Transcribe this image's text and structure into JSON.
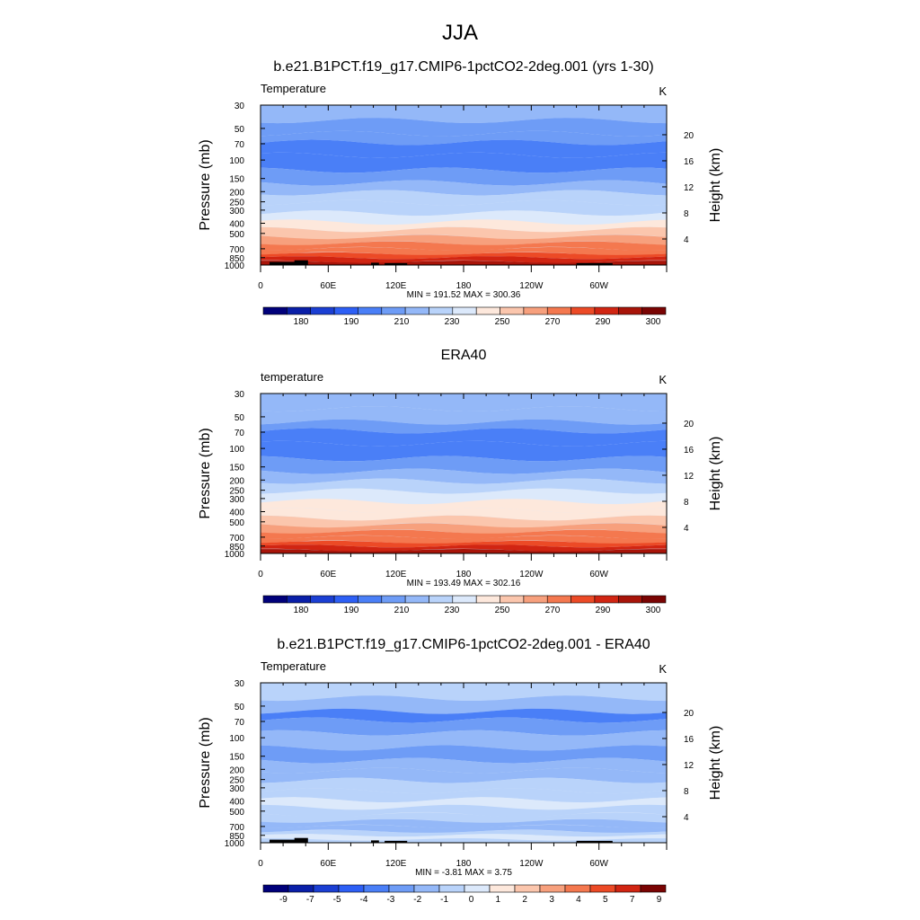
{
  "title": "JJA",
  "chart_data": [
    {
      "type": "heatmap",
      "title": "b.e21.B1PCT.f19_g17.CMIP6-1pctCO2-2deg.001 (yrs 1-30)",
      "variable_label": "Temperature",
      "units": "K",
      "ylabel": "Pressure (mb)",
      "y2label": "Height (km)",
      "yticks": [
        "30",
        "50",
        "70",
        "100",
        "150",
        "200",
        "250",
        "300",
        "400",
        "500",
        "700",
        "850",
        "1000"
      ],
      "y2ticks": [
        "20",
        "16",
        "12",
        "8",
        "4"
      ],
      "xticks": [
        "0",
        "60E",
        "120E",
        "180",
        "120W",
        "60W"
      ],
      "stats": "MIN = 191.52  MAX = 300.36",
      "colorbar_labels": [
        "180",
        "190",
        "210",
        "230",
        "250",
        "270",
        "290",
        "300"
      ],
      "colorbar_levels": [
        175,
        180,
        185,
        190,
        200,
        210,
        220,
        230,
        240,
        250,
        260,
        270,
        280,
        290,
        295,
        300
      ],
      "band_values": [
        215,
        207,
        205,
        199,
        197,
        205,
        212,
        220,
        229,
        236,
        246,
        256,
        263,
        272,
        278,
        286,
        292,
        296
      ],
      "palette": "temperature"
    },
    {
      "type": "heatmap",
      "title": "ERA40",
      "variable_label": "temperature",
      "units": "K",
      "ylabel": "Pressure (mb)",
      "y2label": "Height (km)",
      "yticks": [
        "30",
        "50",
        "70",
        "100",
        "150",
        "200",
        "250",
        "300",
        "400",
        "500",
        "700",
        "850",
        "1000"
      ],
      "y2ticks": [
        "20",
        "16",
        "12",
        "8",
        "4"
      ],
      "xticks": [
        "0",
        "60E",
        "120E",
        "180",
        "120W",
        "60W"
      ],
      "stats": "MIN = 193.49  MAX = 302.16",
      "colorbar_labels": [
        "180",
        "190",
        "210",
        "230",
        "250",
        "270",
        "290",
        "300"
      ],
      "colorbar_levels": [
        175,
        180,
        185,
        190,
        200,
        210,
        220,
        230,
        240,
        250,
        260,
        270,
        280,
        290,
        295,
        300
      ],
      "band_values": [
        215,
        210,
        205,
        199,
        198,
        205,
        213,
        222,
        232,
        240,
        248,
        257,
        265,
        272,
        279,
        287,
        293,
        298
      ],
      "palette": "temperature"
    },
    {
      "type": "heatmap",
      "title": "b.e21.B1PCT.f19_g17.CMIP6-1pctCO2-2deg.001 - ERA40",
      "variable_label": "Temperature",
      "units": "K",
      "ylabel": "Pressure (mb)",
      "y2label": "Height (km)",
      "yticks": [
        "30",
        "50",
        "70",
        "100",
        "150",
        "200",
        "250",
        "300",
        "400",
        "500",
        "700",
        "850",
        "1000"
      ],
      "y2ticks": [
        "20",
        "16",
        "12",
        "8",
        "4"
      ],
      "xticks": [
        "0",
        "60E",
        "120E",
        "180",
        "120W",
        "60W"
      ],
      "stats": "MIN =  -3.81  MAX =   3.75",
      "colorbar_labels": [
        "-9",
        "-7",
        "-5",
        "-4",
        "-3",
        "-2",
        "-1",
        "0",
        "1",
        "2",
        "3",
        "4",
        "5",
        "7",
        "9"
      ],
      "colorbar_levels": [
        -9,
        -7,
        -5,
        -4,
        -3,
        -2,
        -1,
        0,
        1,
        2,
        3,
        4,
        5,
        7,
        9
      ],
      "band_values": [
        -0.5,
        -1.5,
        -3.5,
        -2.5,
        -1.5,
        -2.5,
        -1.5,
        -1.5,
        -0.5,
        -0.5,
        0.5,
        -0.5,
        -0.5,
        -1.5,
        -1.5,
        -0.5,
        0.5,
        -0.5
      ],
      "palette": "difference"
    }
  ],
  "colors": {
    "temperature": [
      "#00007a",
      "#0a1fa8",
      "#1b3fd3",
      "#2d5ff5",
      "#4a7ff7",
      "#6e9cf6",
      "#94b8f8",
      "#b9d3fa",
      "#dce9fb",
      "#fde8dc",
      "#fbc6ad",
      "#f7a07d",
      "#f4784f",
      "#ec4a26",
      "#d12512",
      "#a81409",
      "#7a0403"
    ],
    "difference": [
      "#00007a",
      "#0a1fa8",
      "#1b3fd3",
      "#2d5ff5",
      "#4a7ff7",
      "#6e9cf6",
      "#94b8f8",
      "#b9d3fa",
      "#dce9fb",
      "#fde8dc",
      "#fbc6ad",
      "#f7a07d",
      "#f4784f",
      "#ec4a26",
      "#d12512",
      "#7a0403"
    ],
    "terrain": "#000000"
  }
}
